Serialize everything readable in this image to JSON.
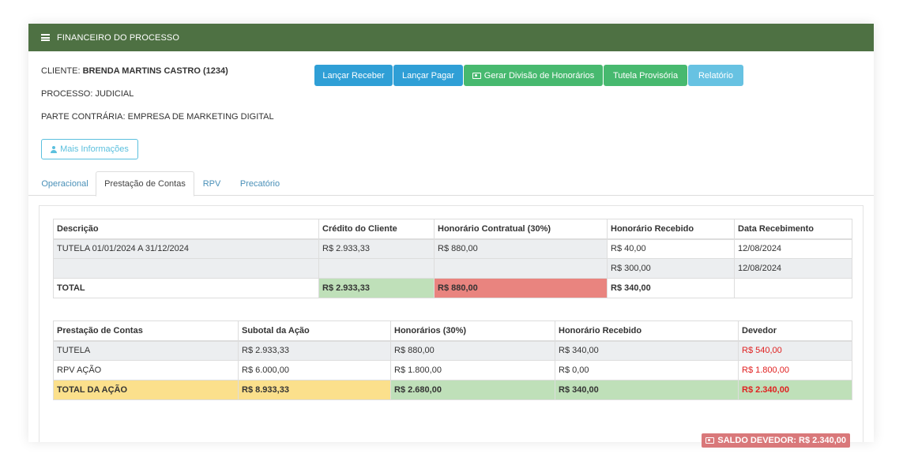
{
  "header": {
    "title": "FINANCEIRO DO PROCESSO"
  },
  "info": {
    "cliente_label": "CLIENTE:",
    "cliente_value": "BRENDA MARTINS CASTRO (1234)",
    "processo": "PROCESSO: JUDICIAL",
    "parte_contraria": "PARTE CONTRÁRIA: EMPRESA DE MARKETING DIGITAL",
    "more_button": "Mais Informações"
  },
  "actions": {
    "lancar_receber": "Lançar Receber",
    "lancar_pagar": "Lançar Pagar",
    "gerar_divisao": "Gerar Divisão de Honorários",
    "tutela_provisoria": "Tutela Provisória",
    "relatorio": "Relatório"
  },
  "tabs": [
    "Operacional",
    "Prestação de Contas",
    "RPV",
    "Precatório"
  ],
  "table1": {
    "headers": [
      "Descrição",
      "Crédito do Cliente",
      "Honorário Contratual (30%)",
      "Honorário Recebido",
      "Data Recebimento"
    ],
    "row1": [
      "TUTELA 01/01/2024 A 31/12/2024",
      "R$ 2.933,33",
      "R$ 880,00",
      "R$ 40,00",
      "12/08/2024"
    ],
    "row2": [
      "R$ 300,00",
      "12/08/2024"
    ],
    "total": [
      "TOTAL",
      "R$ 2.933,33",
      "R$ 880,00",
      "R$ 340,00"
    ]
  },
  "table2": {
    "headers": [
      "Prestação de Contas",
      "Subotal da Ação",
      "Honorários (30%)",
      "Honorário Recebido",
      "Devedor"
    ],
    "rows": [
      [
        "TUTELA",
        "R$ 2.933,33",
        "R$ 880,00",
        "R$ 340,00",
        "R$ 540,00"
      ],
      [
        "RPV AÇÃO",
        "R$ 6.000,00",
        "R$ 1.800,00",
        "R$ 0,00",
        "R$ 1.800,00"
      ]
    ],
    "total": [
      "TOTAL DA AÇÃO",
      "R$ 8.933,33",
      "R$ 2.680,00",
      "R$ 340,00",
      "R$ 2.340,00"
    ]
  },
  "saldo": "SALDO DEVEDOR: R$ 2.340,00",
  "colors": {
    "header_bg": "#4e7143",
    "btn_blue": "#2f9fd6",
    "btn_green": "#47b96f",
    "btn_light": "#67c2e2",
    "cell_green": "#bfe0b9",
    "cell_red": "#e9847f",
    "cell_yellow": "#fbe08c",
    "debt_red": "#e02020",
    "saldo_bg": "#d9787a"
  },
  "icons": {
    "header": "list-icon",
    "more": "user-icon",
    "money": "money-icon"
  }
}
